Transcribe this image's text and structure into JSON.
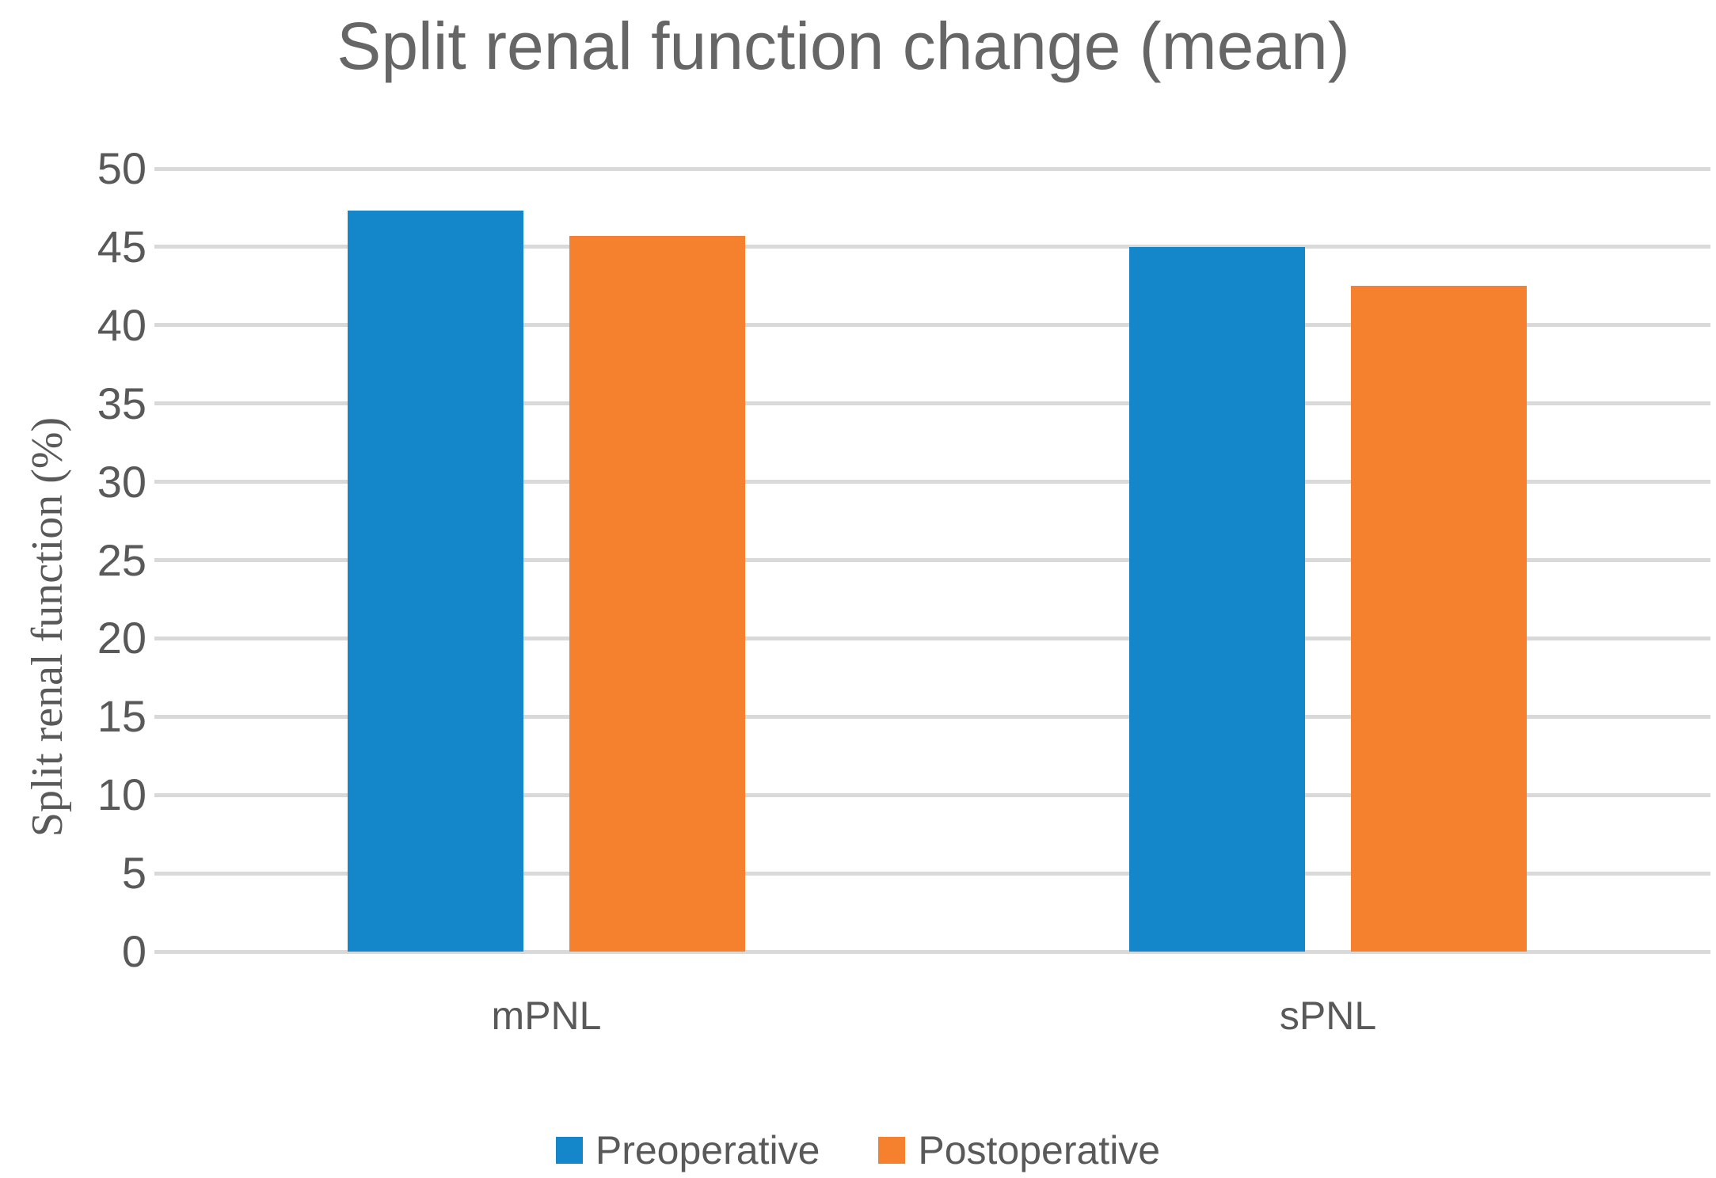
{
  "chart_data": {
    "type": "bar",
    "title": "Split renal function change (mean)",
    "ylabel": "Split renal function (%)",
    "categories": [
      "mPNL",
      "sPNL"
    ],
    "series": [
      {
        "name": "Preoperative",
        "color": "#1487CA",
        "values": [
          47.3,
          45.0
        ]
      },
      {
        "name": "Postoperative",
        "color": "#F5812E",
        "values": [
          45.7,
          42.5
        ]
      }
    ],
    "ylim": [
      0,
      50
    ],
    "ytick_step": 5,
    "yticks": [
      0,
      5,
      10,
      15,
      20,
      25,
      30,
      35,
      40,
      45,
      50
    ],
    "grid": true,
    "legend_position": "bottom"
  },
  "colors": {
    "title-text": "#666666",
    "axis-text": "#595959",
    "gridline": "#D9D9D9",
    "background": "#FFFFFF"
  }
}
